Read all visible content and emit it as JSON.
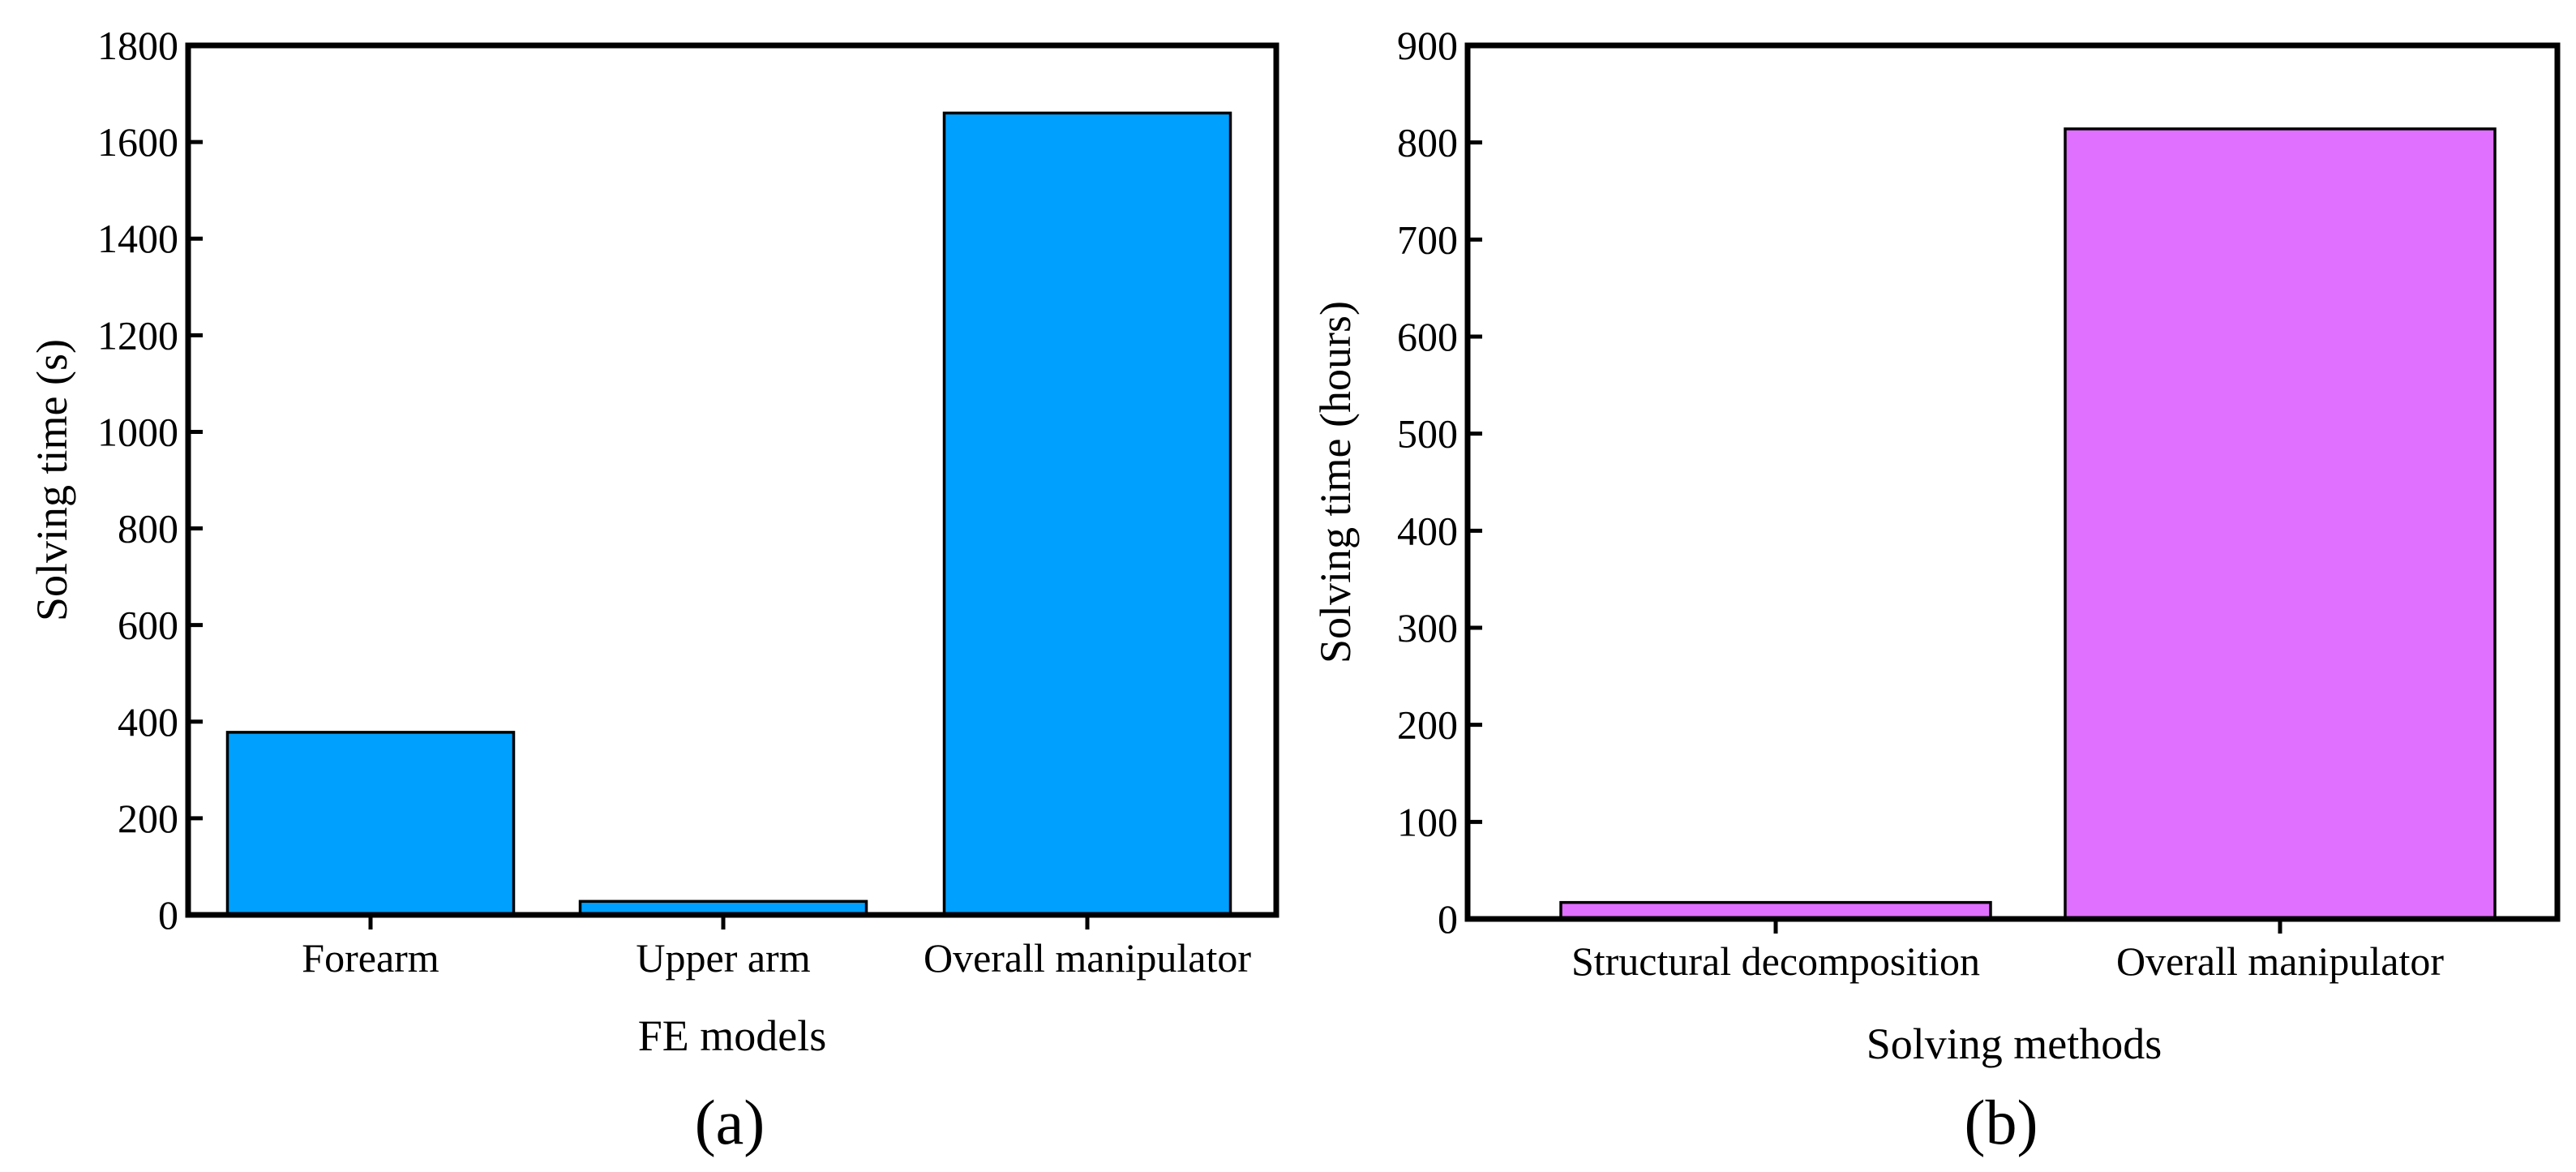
{
  "chart_data": [
    {
      "type": "bar",
      "categories": [
        "Forearm",
        "Upper arm",
        "Overall manipulator"
      ],
      "values": [
        378,
        28,
        1660
      ],
      "xlabel": "FE models",
      "ylabel": "Solving time (s)",
      "ylim": [
        0,
        1800
      ],
      "yticks": [
        0,
        200,
        400,
        600,
        800,
        1000,
        1200,
        1400,
        1600,
        1800
      ],
      "color": "#00a0ff",
      "panel_label": "(a)",
      "grid": false
    },
    {
      "type": "bar",
      "categories": [
        "Structural decomposition",
        "Overall manipulator"
      ],
      "values": [
        17,
        814
      ],
      "xlabel": "Solving methods",
      "ylabel": "Solving time (hours)",
      "ylim": [
        0,
        900
      ],
      "yticks": [
        0,
        100,
        200,
        300,
        400,
        500,
        600,
        700,
        800,
        900
      ],
      "color": "#e070ff",
      "panel_label": "(b)",
      "grid": false
    }
  ]
}
